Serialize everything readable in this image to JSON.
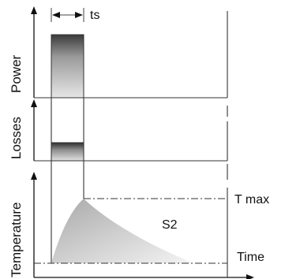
{
  "panels": {
    "power_label": "Power",
    "losses_label": "Losses",
    "temperature_label": "Temperature"
  },
  "annotations": {
    "pulse_width": "ts",
    "max_temperature": "T max",
    "duty_type": "S2",
    "time_axis": "Time"
  },
  "colors": {
    "line": "#111111",
    "shade_dark": "#3a3a3a",
    "shade_light": "#f4f4f4"
  }
}
